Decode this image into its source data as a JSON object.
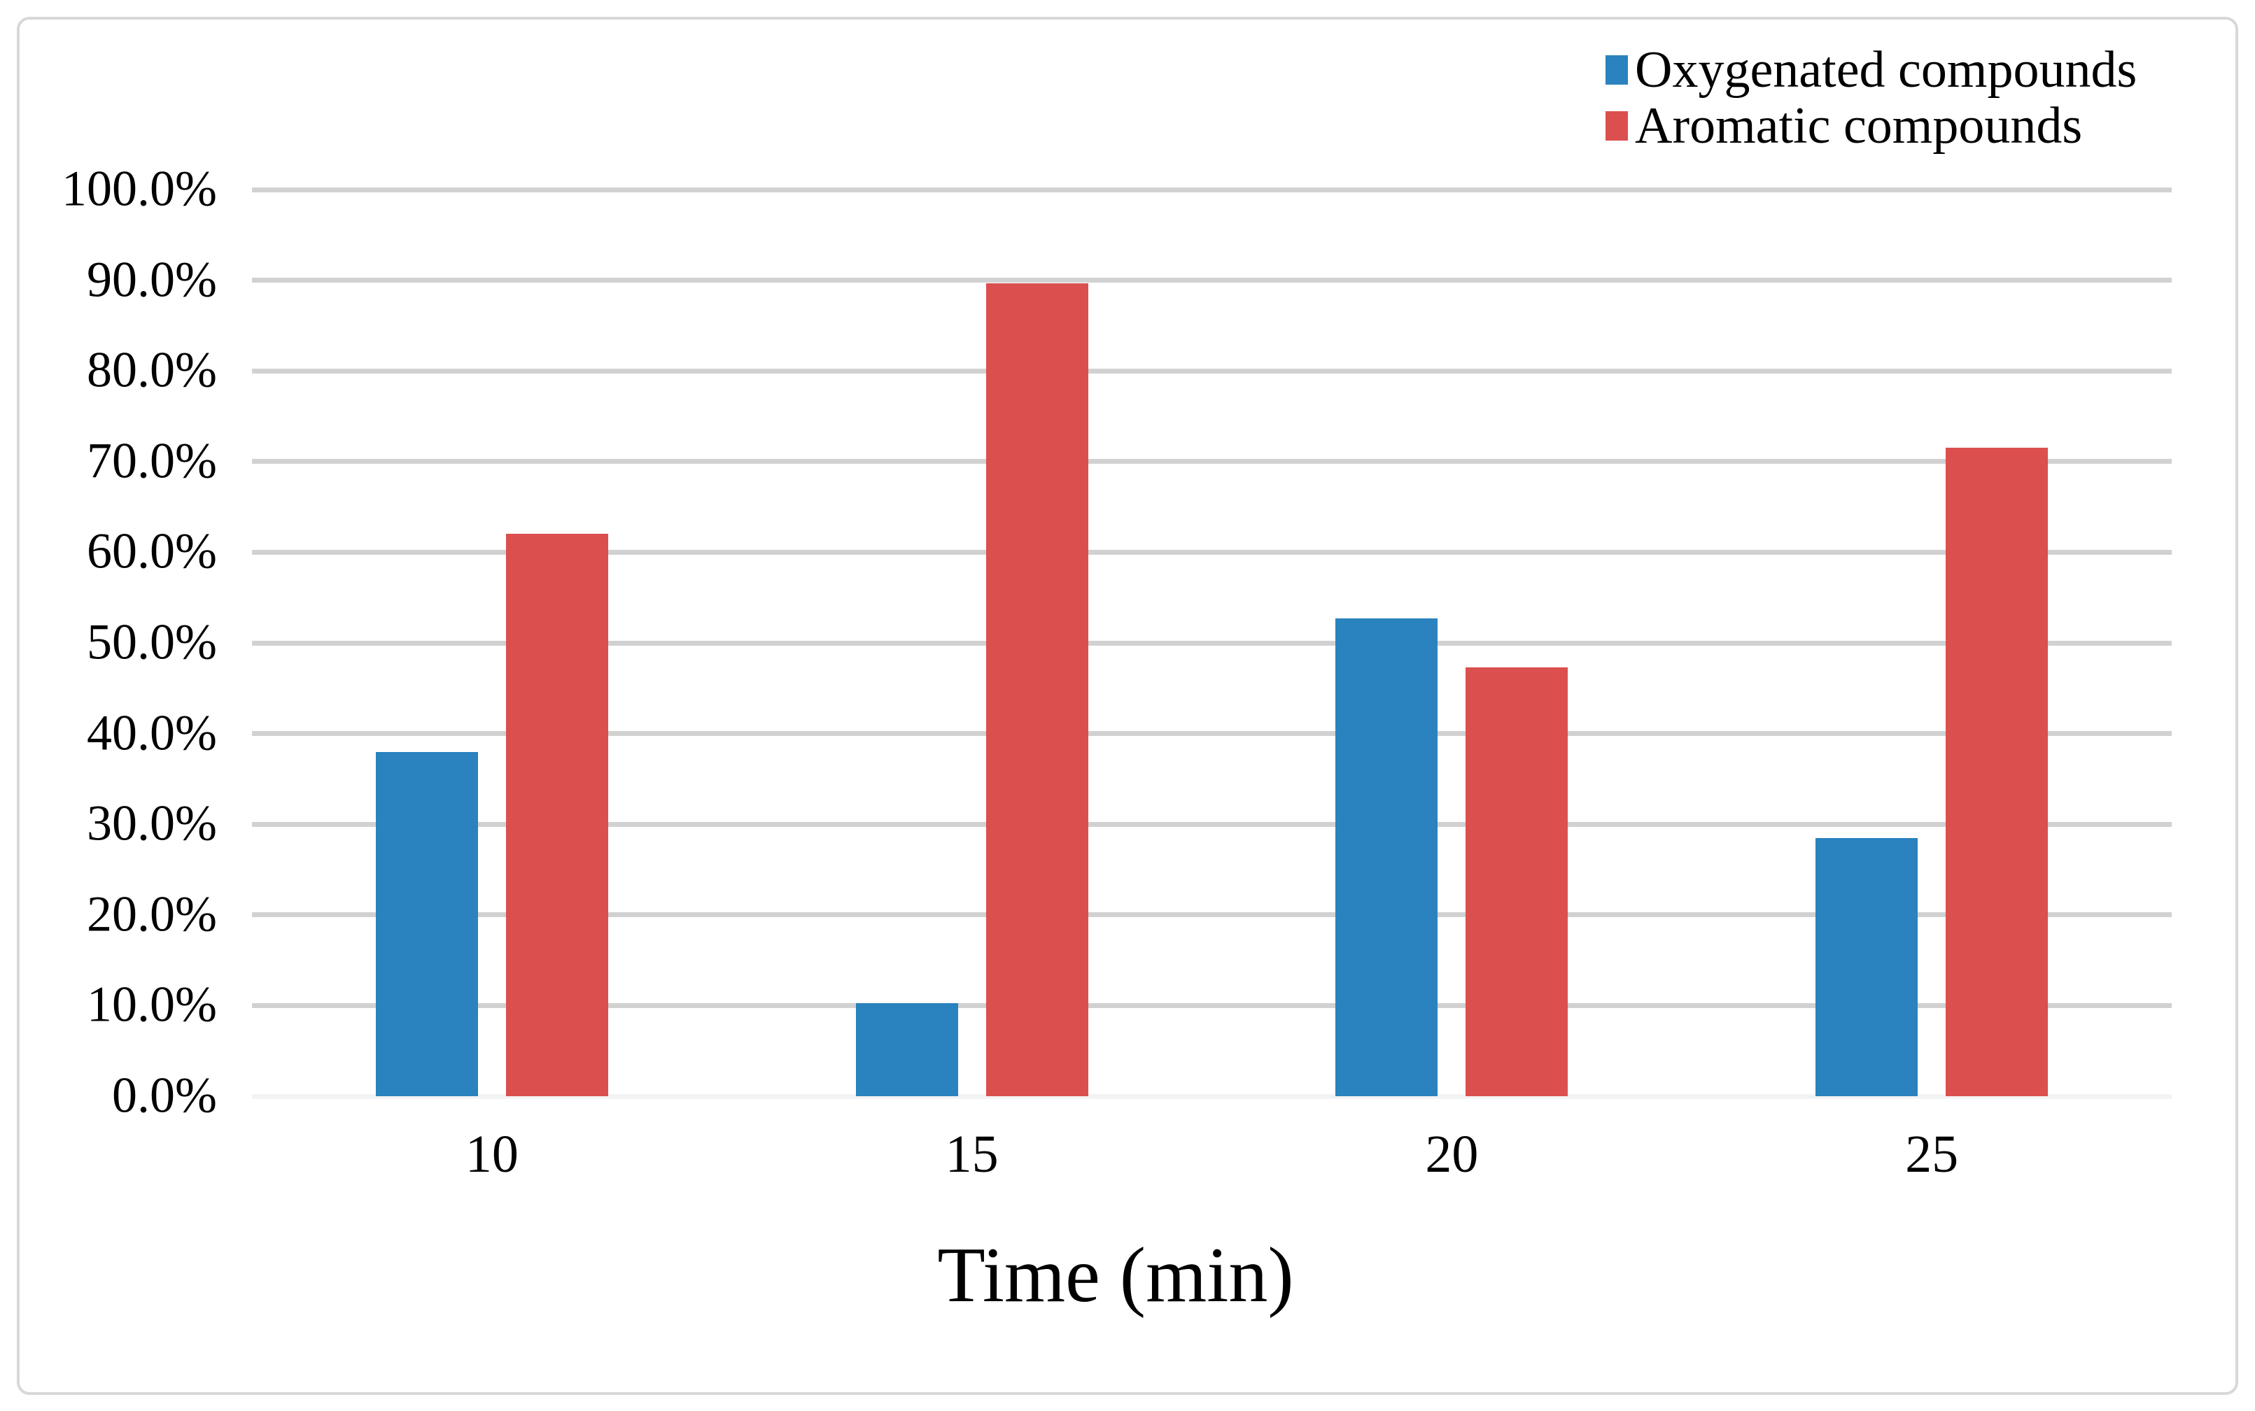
{
  "chart_data": {
    "type": "bar",
    "title": "",
    "xlabel": "Time (min)",
    "ylabel": "",
    "categories": [
      "10",
      "15",
      "20",
      "25"
    ],
    "series": [
      {
        "name": "Oxygenated compounds",
        "color": "#2a82be",
        "values": [
          38.0,
          10.3,
          52.7,
          28.5
        ]
      },
      {
        "name": "Aromatic compounds",
        "color": "#dc4f4f",
        "values": [
          62.0,
          89.7,
          47.3,
          71.5
        ]
      }
    ],
    "y_tick_labels": [
      "100.0%",
      "90.0%",
      "80.0%",
      "70.0%",
      "60.0%",
      "50.0%",
      "40.0%",
      "30.0%",
      "20.0%",
      "10.0%",
      "0.0%"
    ],
    "ylim": [
      0,
      100
    ],
    "y_tick_step": 10,
    "grid": true,
    "legend_position": "top-right",
    "colors": {
      "gridline": "#d1d1d1",
      "zero_line": "#f3f3f3",
      "frame_border": "#d8d8d8",
      "text": "#000000",
      "background": "#ffffff"
    }
  }
}
